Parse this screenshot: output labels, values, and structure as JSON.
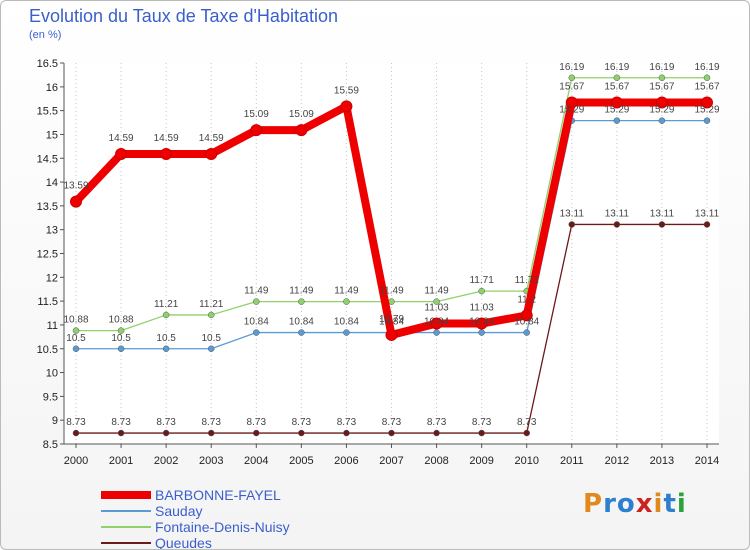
{
  "title": "Evolution du Taux de Taxe d'Habitation",
  "subtitle": "(en %)",
  "logo": {
    "text": "Proxiti",
    "letter_colors": [
      "#e08a1e",
      "#2f7fd0",
      "#2f7fd0",
      "#cc2222",
      "#e08a1e",
      "#2f7fd0",
      "#2aa33a"
    ]
  },
  "chart_data": {
    "type": "line",
    "x": [
      "2000",
      "2001",
      "2002",
      "2003",
      "2004",
      "2005",
      "2006",
      "2007",
      "2008",
      "2009",
      "2010",
      "2011",
      "2012",
      "2013",
      "2014"
    ],
    "ylim": [
      8.5,
      16.5
    ],
    "yticks": [
      "8.5",
      "9",
      "9.5",
      "10",
      "10.5",
      "11",
      "11.5",
      "12",
      "12.5",
      "13",
      "13.5",
      "14",
      "14.5",
      "15",
      "15.5",
      "16",
      "16.5"
    ],
    "grid": "dotted vertical",
    "legend_position": "bottom-left",
    "series": [
      {
        "name": "Queudes",
        "color": "#6b1a1a",
        "values": [
          8.73,
          8.73,
          8.73,
          8.73,
          8.73,
          8.73,
          8.73,
          8.73,
          8.73,
          8.73,
          8.73,
          13.11,
          13.11,
          13.11,
          13.11
        ],
        "labels": [
          "8.73",
          "8.73",
          "8.73",
          "8.73",
          "8.73",
          "8.73",
          "8.73",
          "8.73",
          "8.73",
          "8.73",
          "8.73",
          "13.11",
          "13.11",
          "13.11",
          "13.11"
        ]
      },
      {
        "name": "Sauday",
        "color": "#5b9bd5",
        "values": [
          10.5,
          10.5,
          10.5,
          10.5,
          10.84,
          10.84,
          10.84,
          10.84,
          10.84,
          10.84,
          10.84,
          15.29,
          15.29,
          15.29,
          15.29
        ],
        "labels": [
          "10.5",
          "10.5",
          "10.5",
          "10.5",
          "10.84",
          "10.84",
          "10.84",
          "10.84",
          "10.84",
          "10.84",
          "10.84",
          "15.29",
          "15.29",
          "15.29",
          "15.29"
        ]
      },
      {
        "name": "Fontaine-Denis-Nuisy",
        "color": "#8fd16a",
        "values": [
          10.88,
          10.88,
          11.21,
          11.21,
          11.49,
          11.49,
          11.49,
          11.49,
          11.49,
          11.71,
          11.71,
          16.19,
          16.19,
          16.19,
          16.19
        ],
        "labels": [
          "10.88",
          "10.88",
          "11.21",
          "11.21",
          "11.49",
          "11.49",
          "11.49",
          "11.49",
          "11.49",
          "11.71",
          "11.71",
          "16.19",
          "16.19",
          "16.19",
          "16.19"
        ]
      },
      {
        "name": "BARBONNE-FAYEL",
        "color": "#ee0000",
        "values": [
          13.59,
          14.59,
          14.59,
          14.59,
          15.09,
          15.09,
          15.59,
          10.79,
          11.03,
          11.03,
          11.2,
          15.67,
          15.67,
          15.67,
          15.67
        ],
        "labels": [
          "13.59",
          "14.59",
          "14.59",
          "14.59",
          "15.09",
          "15.09",
          "15.59",
          "10.79",
          "11.03",
          "11.03",
          "11.2",
          "15.67",
          "15.67",
          "15.67",
          "15.67"
        ]
      }
    ],
    "legend": [
      {
        "name": "BARBONNE-FAYEL",
        "color": "#ee0000"
      },
      {
        "name": "Sauday",
        "color": "#5b9bd5"
      },
      {
        "name": "Fontaine-Denis-Nuisy",
        "color": "#8fd16a"
      },
      {
        "name": "Queudes",
        "color": "#6b1a1a"
      }
    ]
  }
}
